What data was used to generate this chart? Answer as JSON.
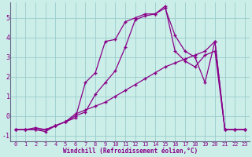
{
  "xlabel": "Windchill (Refroidissement éolien,°C)",
  "bg_color": "#cceee8",
  "line_color": "#880088",
  "grid_color": "#99cccc",
  "spine_color": "#666688",
  "line1_x": [
    0,
    1,
    2,
    3,
    4,
    5,
    6,
    7,
    8,
    9,
    10,
    11,
    12,
    13,
    14,
    15,
    16,
    17,
    18,
    19,
    20,
    21,
    22,
    23
  ],
  "line1_y": [
    -0.7,
    -0.7,
    -0.6,
    -0.7,
    -0.5,
    -0.3,
    -0.1,
    1.7,
    2.2,
    3.8,
    3.9,
    4.8,
    5.0,
    5.2,
    5.2,
    5.5,
    4.1,
    3.3,
    3.0,
    1.7,
    3.8,
    -0.7,
    -0.7,
    -0.7
  ],
  "line2_x": [
    0,
    1,
    2,
    3,
    4,
    5,
    6,
    7,
    8,
    9,
    10,
    11,
    12,
    13,
    14,
    15,
    16,
    17,
    18,
    19,
    20,
    21,
    22,
    23
  ],
  "line2_y": [
    -0.7,
    -0.7,
    -0.7,
    -0.8,
    -0.5,
    -0.3,
    0.0,
    0.2,
    1.1,
    1.7,
    2.3,
    3.5,
    4.9,
    5.1,
    5.2,
    5.6,
    3.3,
    2.8,
    2.5,
    3.1,
    3.3,
    -0.7,
    -0.7,
    -0.7
  ],
  "line3_x": [
    0,
    1,
    2,
    3,
    4,
    5,
    6,
    7,
    8,
    9,
    10,
    11,
    12,
    13,
    14,
    15,
    16,
    17,
    18,
    19,
    20,
    21,
    22,
    23
  ],
  "line3_y": [
    -0.7,
    -0.7,
    -0.7,
    -0.7,
    -0.5,
    -0.3,
    0.1,
    0.3,
    0.5,
    0.7,
    1.0,
    1.3,
    1.6,
    1.9,
    2.2,
    2.5,
    2.7,
    2.9,
    3.1,
    3.3,
    3.8,
    -0.7,
    -0.7,
    -0.7
  ],
  "xlim": [
    -0.5,
    23.5
  ],
  "ylim": [
    -1.3,
    5.8
  ],
  "yticks": [
    -1,
    0,
    1,
    2,
    3,
    4,
    5
  ],
  "xticks": [
    0,
    1,
    2,
    3,
    4,
    5,
    6,
    7,
    8,
    9,
    10,
    11,
    12,
    13,
    14,
    15,
    16,
    17,
    18,
    19,
    20,
    21,
    22,
    23
  ],
  "marker": "+",
  "markersize": 3.5,
  "markeredgewidth": 1.0,
  "linewidth": 0.9,
  "xlabel_fontsize": 5.5,
  "tick_fontsize": 5.0,
  "ytick_fontsize": 6.0
}
